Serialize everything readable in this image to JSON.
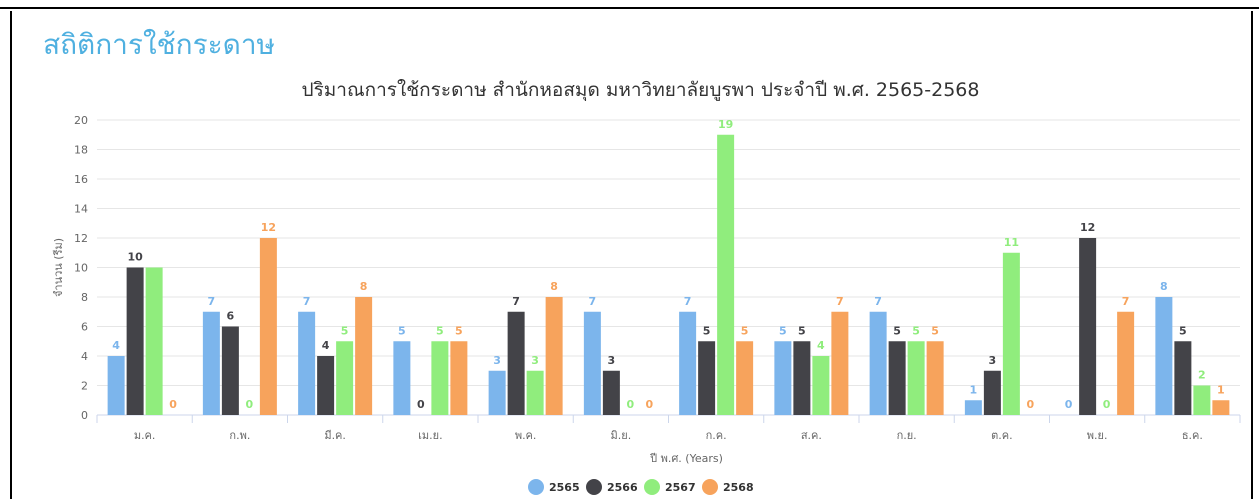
{
  "page": {
    "heading": "สถิติการใช้กระดาษ"
  },
  "chart_data": {
    "type": "bar",
    "title": "ปริมาณการใช้กระดาษ สำนักหอสมุด มหาวิทยาลัยบูรพา ประจำปี พ.ศ. 2565-2568",
    "xlabel": "ปี พ.ศ. (Years)",
    "ylabel": "จำนวน (รีม)",
    "ylim": [
      0,
      20
    ],
    "yticks": [
      0,
      2,
      4,
      6,
      8,
      10,
      12,
      14,
      16,
      18,
      20
    ],
    "grid": true,
    "legend_position": "bottom",
    "categories": [
      "ม.ค.",
      "ก.พ.",
      "มี.ค.",
      "เม.ย.",
      "พ.ค.",
      "มิ.ย.",
      "ก.ค.",
      "ส.ค.",
      "ก.ย.",
      "ต.ค.",
      "พ.ย.",
      "ธ.ค."
    ],
    "series": [
      {
        "name": "2565",
        "color": "#7cb5ec",
        "values": [
          4,
          7,
          7,
          5,
          3,
          7,
          7,
          5,
          7,
          1,
          0,
          8
        ],
        "labels": [
          "4",
          "7",
          "7",
          "5",
          "3",
          "7",
          "7",
          "5",
          "7",
          "1",
          "0",
          "8"
        ]
      },
      {
        "name": "2566",
        "color": "#434348",
        "values": [
          10,
          6,
          4,
          0,
          7,
          3,
          5,
          5,
          5,
          3,
          12,
          5
        ],
        "labels": [
          "10",
          "6",
          "4",
          "0",
          "7",
          "3",
          "5",
          "5",
          "5",
          "3",
          "12",
          "5"
        ]
      },
      {
        "name": "2567",
        "color": "#90ed7d",
        "values": [
          10,
          0,
          5,
          5,
          3,
          0,
          19,
          4,
          5,
          11,
          0,
          2
        ],
        "labels": [
          "",
          "0",
          "5",
          "5",
          "3",
          "0",
          "19",
          "4",
          "5",
          "11",
          "0",
          "2"
        ]
      },
      {
        "name": "2568",
        "color": "#f7a35c",
        "values": [
          0,
          12,
          8,
          5,
          8,
          0,
          5,
          7,
          5,
          0,
          7,
          1
        ],
        "labels": [
          "0",
          "12",
          "8",
          "5",
          "8",
          "0",
          "5",
          "7",
          "5",
          "0",
          "7",
          "1"
        ]
      }
    ]
  }
}
